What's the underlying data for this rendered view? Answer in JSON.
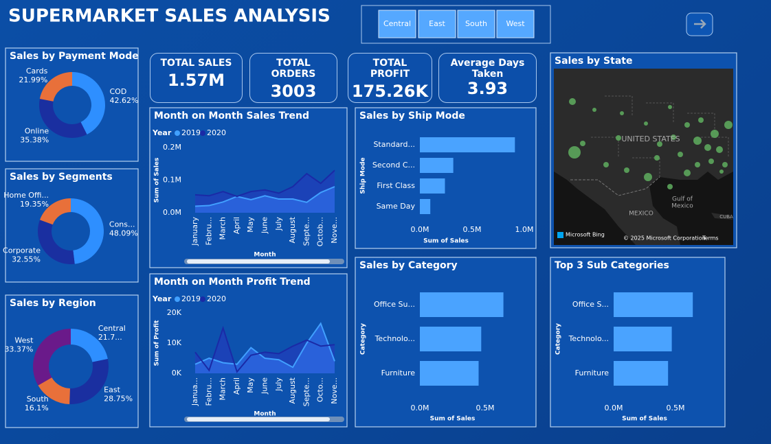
{
  "header": {
    "title": "SUPERMARKET SALES  ANALYSIS"
  },
  "slicer": {
    "options": [
      "Central",
      "East",
      "South",
      "West"
    ]
  },
  "kpis": [
    {
      "label": "TOTAL SALES",
      "value": "1.57M"
    },
    {
      "label": "TOTAL ORDERS",
      "value": "3003"
    },
    {
      "label": "TOTAL PROFIT",
      "value": "175.26K"
    },
    {
      "label": "Average Days Taken",
      "value": "3.93"
    }
  ],
  "map": {
    "title": "Sales by State",
    "labels": [
      "UNITED STATES",
      "MEXICO",
      "Gulf of",
      "Mexico",
      "CUBA"
    ],
    "attribution": [
      "Microsoft Bing",
      "© 2025 Microsoft Corporation",
      "Terms"
    ]
  },
  "chart_data": [
    {
      "type": "pie",
      "donut": true,
      "title": "Sales by Payment Mode",
      "categories": [
        "COD",
        "Online",
        "Cards"
      ],
      "values": [
        42.62,
        35.38,
        21.99
      ],
      "value_labels": [
        "42.62%",
        "35.38%",
        "21.99%"
      ],
      "colors": [
        "#2e8fff",
        "#1a2fa0",
        "#e8703a"
      ]
    },
    {
      "type": "pie",
      "donut": true,
      "title": "Sales by Segments",
      "categories": [
        "Cons...",
        "Corporate",
        "Home Offi..."
      ],
      "values": [
        48.09,
        32.55,
        19.35
      ],
      "value_labels": [
        "48.09%",
        "32.55%",
        "19.35%"
      ],
      "colors": [
        "#2e8fff",
        "#1a2fa0",
        "#e8703a"
      ]
    },
    {
      "type": "pie",
      "donut": true,
      "title": "Sales by Region",
      "categories": [
        "Central",
        "East",
        "South",
        "West"
      ],
      "values": [
        21.78,
        28.75,
        16.1,
        33.37
      ],
      "value_labels": [
        "21.7...",
        "28.75%",
        "16.1%",
        "33.37%"
      ],
      "colors": [
        "#2e8fff",
        "#1a2fa0",
        "#e8703a",
        "#6a1a8a"
      ]
    },
    {
      "type": "line",
      "title": "Month on Month Sales Trend",
      "legend_title": "Year",
      "categories": [
        "January",
        "Febru...",
        "March",
        "April",
        "May",
        "June",
        "July",
        "August",
        "Septe...",
        "Octob...",
        "Nove..."
      ],
      "series": [
        {
          "name": "2019",
          "color": "#41a0ff",
          "values": [
            20000,
            22000,
            33000,
            50000,
            40000,
            52000,
            42000,
            42000,
            32000,
            62000,
            80000
          ]
        },
        {
          "name": "2020",
          "color": "#1a2aa6",
          "values": [
            55000,
            52000,
            65000,
            50000,
            65000,
            70000,
            60000,
            80000,
            120000,
            90000,
            130000
          ]
        }
      ],
      "ylim": [
        0,
        200000
      ],
      "yticks": [
        {
          "value": 0,
          "label": "0.0M"
        },
        {
          "value": 100000,
          "label": "0.1M"
        },
        {
          "value": 200000,
          "label": "0.2M"
        }
      ],
      "x_label": "Month",
      "y_label": "Sum of Sales"
    },
    {
      "type": "line",
      "title": "Month on Month Profit Trend",
      "legend_title": "Year",
      "categories": [
        "Janua...",
        "Febru...",
        "March",
        "April",
        "May",
        "June",
        "July",
        "August",
        "Septe...",
        "Octo...",
        "Nove..."
      ],
      "series": [
        {
          "name": "2019",
          "color": "#41a0ff",
          "values": [
            3000,
            5000,
            3500,
            3000,
            8500,
            5000,
            4500,
            2000,
            10000,
            16500,
            4000
          ]
        },
        {
          "name": "2020",
          "color": "#1a2aa6",
          "values": [
            7000,
            1000,
            15000,
            500,
            6000,
            7000,
            6500,
            9000,
            11000,
            9000,
            9500
          ]
        }
      ],
      "ylim": [
        0,
        20000
      ],
      "yticks": [
        {
          "value": 0,
          "label": "0K"
        },
        {
          "value": 10000,
          "label": "10K"
        },
        {
          "value": 20000,
          "label": "20K"
        }
      ],
      "x_label": "Month",
      "y_label": "Sum of Profit"
    },
    {
      "type": "hbar",
      "title": "Sales by Ship Mode",
      "color": "#4aa3ff",
      "categories": [
        "Standard...",
        "Second C...",
        "First Class",
        "Same Day"
      ],
      "values": [
        910000,
        320000,
        240000,
        100000
      ],
      "xlim": [
        0,
        1000000
      ],
      "xticks": [
        {
          "value": 0,
          "label": "0.0M"
        },
        {
          "value": 500000,
          "label": "0.5M"
        },
        {
          "value": 1000000,
          "label": "1.0M"
        }
      ],
      "x_label": "Sum of Sales",
      "y_label": "Ship Mode"
    },
    {
      "type": "hbar",
      "title": "Sales by Category",
      "color": "#4aa3ff",
      "categories": [
        "Office Su...",
        "Technolo...",
        "Furniture"
      ],
      "values": [
        640000,
        470000,
        450000
      ],
      "xlim": [
        0,
        800000
      ],
      "xticks": [
        {
          "value": 0,
          "label": "0.0M"
        },
        {
          "value": 500000,
          "label": "0.5M"
        }
      ],
      "x_label": "Sum of Sales",
      "y_label": "Category"
    },
    {
      "type": "hbar",
      "title": "Top 3 Sub Categories",
      "color": "#4aa3ff",
      "categories": [
        "Office S...",
        "Technolo...",
        "Furniture"
      ],
      "values": [
        640000,
        470000,
        440000
      ],
      "xlim": [
        0,
        800000
      ],
      "xticks": [
        {
          "value": 0,
          "label": "0.0M"
        },
        {
          "value": 500000,
          "label": "0.5M"
        }
      ],
      "x_label": "Sum of Sales",
      "y_label": "Category"
    }
  ]
}
